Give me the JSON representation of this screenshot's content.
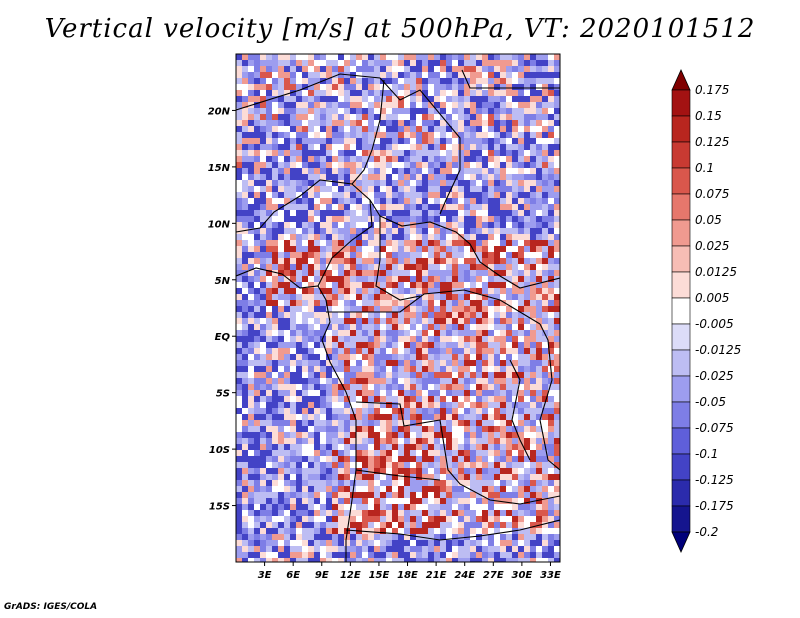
{
  "title": "Vertical velocity [m/s] at 500hPa, VT: 2020101512",
  "footer": "GrADS: IGES/COLA",
  "chart_data": {
    "type": "heatmap",
    "title": "Vertical velocity [m/s] at 500hPa, VT: 2020101512",
    "variable": "vertical velocity",
    "units": "m/s",
    "level": "500hPa",
    "valid_time": "2020101512",
    "x_ticks": [
      "3E",
      "6E",
      "9E",
      "12E",
      "15E",
      "18E",
      "21E",
      "24E",
      "27E",
      "30E",
      "33E"
    ],
    "x_tick_values": [
      3,
      6,
      9,
      12,
      15,
      18,
      21,
      24,
      27,
      30,
      33
    ],
    "y_ticks": [
      "20N",
      "15N",
      "10N",
      "5N",
      "EQ",
      "5S",
      "10S",
      "15S"
    ],
    "y_tick_values": [
      20,
      15,
      10,
      5,
      0,
      -5,
      -10,
      -15
    ],
    "xlim": [
      0,
      34
    ],
    "ylim": [
      -20,
      25
    ],
    "colorbar": {
      "labels": [
        "0.175",
        "0.15",
        "0.125",
        "0.1",
        "0.075",
        "0.05",
        "0.025",
        "0.0125",
        "0.005",
        "-0.005",
        "-0.0125",
        "-0.025",
        "-0.05",
        "-0.075",
        "-0.1",
        "-0.125",
        "-0.175",
        "-0.2"
      ],
      "values": [
        0.175,
        0.15,
        0.125,
        0.1,
        0.075,
        0.05,
        0.025,
        0.0125,
        0.005,
        -0.005,
        -0.0125,
        -0.025,
        -0.05,
        -0.075,
        -0.1,
        -0.125,
        -0.175,
        -0.2
      ],
      "colors": [
        "#7f0000",
        "#a31212",
        "#b8261f",
        "#c83a32",
        "#d9574c",
        "#e6776c",
        "#f09a90",
        "#f7bdb5",
        "#fcdcd7",
        "#ffffff",
        "#dcdcf8",
        "#bdbdf3",
        "#9d9def",
        "#7e7ee6",
        "#5f5fda",
        "#4343c6",
        "#2b2bac",
        "#15158e",
        "#00007a"
      ]
    }
  }
}
